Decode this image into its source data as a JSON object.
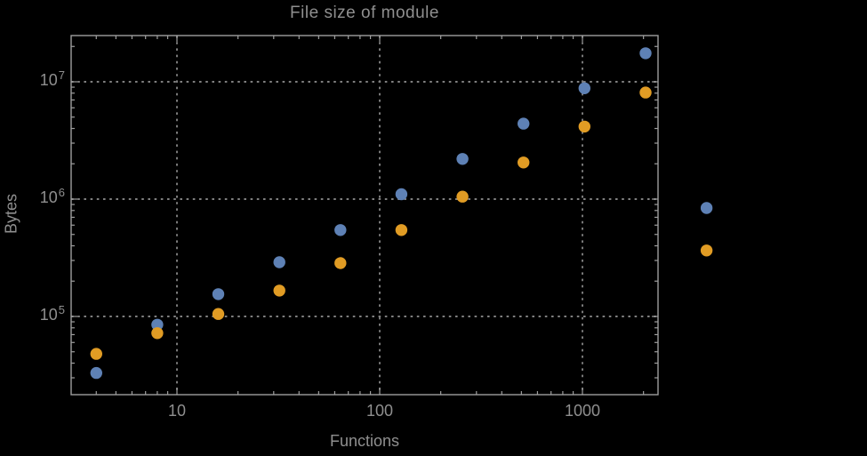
{
  "chart_data": {
    "type": "scatter",
    "title": "File size of module",
    "xlabel": "Functions",
    "ylabel": "Bytes",
    "x_scale": "log",
    "y_scale": "log",
    "x_range": [
      3,
      2360
    ],
    "y_range": [
      21000,
      25000000
    ],
    "grid": "dotted gridlines at decade ticks, frame with mirrored ticks",
    "legend": "none",
    "background_color": "#000000",
    "frame_color": "#9e9e9e",
    "grid_color": "#7f7f7f",
    "text_color": "#8f8f8f",
    "x": [
      4,
      8,
      16,
      32,
      64,
      128,
      256,
      512,
      1024,
      2048,
      4096
    ],
    "series": [
      {
        "name": "blue",
        "color": "#5e81b5",
        "values": [
          33000,
          85000,
          155000,
          290000,
          545000,
          1100000,
          2200000,
          4400000,
          8800000,
          17500000,
          840000
        ]
      },
      {
        "name": "orange",
        "color": "#e19c24",
        "values": [
          48000,
          72000,
          105000,
          166000,
          285000,
          545000,
          1050000,
          2050000,
          4150000,
          8100000,
          365000
        ]
      }
    ],
    "x_ticks": [
      {
        "value": 10,
        "label": "10"
      },
      {
        "value": 100,
        "label": "100"
      },
      {
        "value": 1000,
        "label": "1000"
      }
    ],
    "y_ticks": [
      {
        "value": 100000,
        "base": "10",
        "exp": "5"
      },
      {
        "value": 1000000,
        "base": "10",
        "exp": "6"
      },
      {
        "value": 10000000,
        "base": "10",
        "exp": "7"
      }
    ]
  }
}
